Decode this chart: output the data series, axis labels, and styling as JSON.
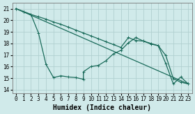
{
  "xlabel": "Humidex (Indice chaleur)",
  "ylabel": "",
  "xlim": [
    -0.5,
    23.5
  ],
  "ylim": [
    13.7,
    21.5
  ],
  "yticks": [
    14,
    15,
    16,
    17,
    18,
    19,
    20,
    21
  ],
  "xticks": [
    0,
    1,
    2,
    3,
    4,
    5,
    6,
    7,
    8,
    9,
    10,
    11,
    12,
    13,
    14,
    15,
    16,
    17,
    18,
    19,
    20,
    21,
    22,
    23
  ],
  "background_color": "#d0eaea",
  "grid_color": "#b0d0d0",
  "line_color": "#1a6b5a",
  "line1_x": [
    0,
    23
  ],
  "line1_y": [
    21.0,
    14.5
  ],
  "line2_x": [
    0,
    1,
    2,
    3,
    4,
    5,
    6,
    7,
    8,
    9,
    10,
    11,
    12,
    13,
    14,
    15,
    16,
    17,
    18,
    19,
    20,
    21,
    22,
    23
  ],
  "line2_y": [
    21.0,
    20.75,
    20.5,
    20.3,
    20.1,
    19.85,
    19.65,
    19.4,
    19.15,
    18.9,
    18.65,
    18.4,
    18.15,
    17.9,
    17.65,
    18.5,
    18.25,
    18.2,
    17.95,
    17.8,
    16.95,
    14.95,
    14.65,
    14.5
  ],
  "line3_x": [
    0,
    1,
    2,
    3,
    4,
    5,
    6,
    7,
    8,
    9,
    9,
    10,
    11,
    12,
    13,
    14,
    15,
    16,
    17,
    18,
    19,
    20,
    21,
    22,
    23
  ],
  "line3_y": [
    21.0,
    20.75,
    20.5,
    18.9,
    16.2,
    15.05,
    15.2,
    15.1,
    15.05,
    14.9,
    15.55,
    16.0,
    16.1,
    16.5,
    17.1,
    17.4,
    18.05,
    18.5,
    18.2,
    18.0,
    17.8,
    16.25,
    14.5,
    15.1,
    14.5
  ],
  "marker_size": 2.5,
  "linewidth": 0.9,
  "tick_fontsize": 5.5,
  "xlabel_fontsize": 7.0
}
